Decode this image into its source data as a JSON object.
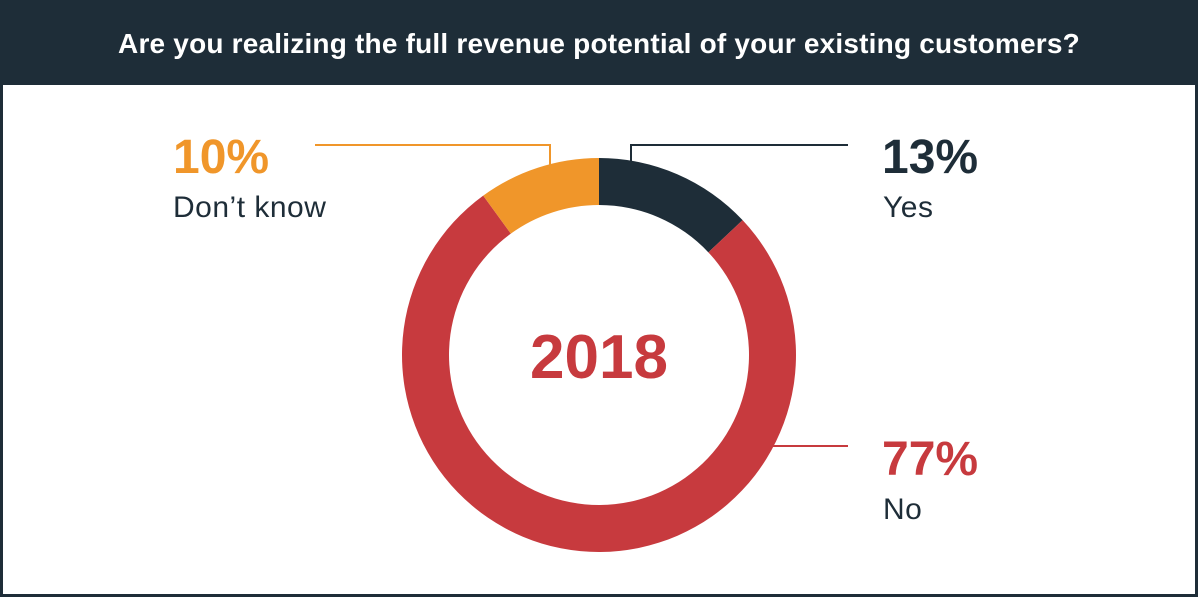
{
  "header": {
    "title": "Are you realizing the full revenue potential of your existing customers?"
  },
  "chart_data": {
    "type": "pie",
    "style": "donut",
    "title": "Are you realizing the full revenue potential of your existing customers?",
    "center_label": "2018",
    "slices": [
      {
        "label": "Yes",
        "value": 13,
        "display": "13%",
        "color": "#1e2d38"
      },
      {
        "label": "No",
        "value": 77,
        "display": "77%",
        "color": "#c73a3e"
      },
      {
        "label": "Don’t know",
        "value": 10,
        "display": "10%",
        "color": "#f0962a"
      }
    ]
  },
  "colors": {
    "header_bg": "#1e2d38",
    "header_text": "#ffffff",
    "yes": "#1e2d38",
    "no": "#c73a3e",
    "dont_know": "#f0962a"
  }
}
